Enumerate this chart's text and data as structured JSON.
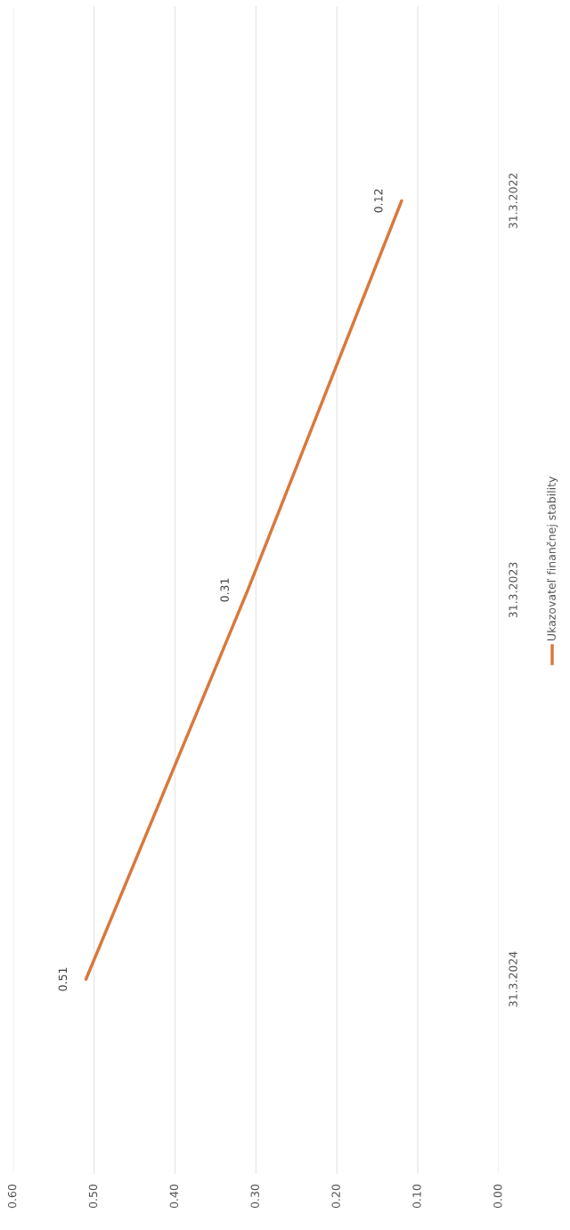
{
  "chart_data": {
    "type": "line",
    "orientation": "horizontal",
    "categories": [
      "31.3.2022",
      "31.3.2023",
      "31.3.2024"
    ],
    "series": [
      {
        "name": "Ukazovateľ finančnej stability",
        "color": "#d9783c",
        "values": [
          0.12,
          0.31,
          0.51
        ]
      }
    ],
    "xlim": [
      0.6,
      0.0
    ],
    "xticks": [
      {
        "value": 0.6,
        "label": "0.60"
      },
      {
        "value": 0.5,
        "label": "0.50"
      },
      {
        "value": 0.4,
        "label": "0.40"
      },
      {
        "value": 0.3,
        "label": "0.30"
      },
      {
        "value": 0.2,
        "label": "0.20"
      },
      {
        "value": 0.1,
        "label": "0.10"
      },
      {
        "value": 0.0,
        "label": "0.00"
      }
    ],
    "grid": "x",
    "legend": "right",
    "data_labels": true,
    "marker": "none",
    "line_style": "solid"
  }
}
